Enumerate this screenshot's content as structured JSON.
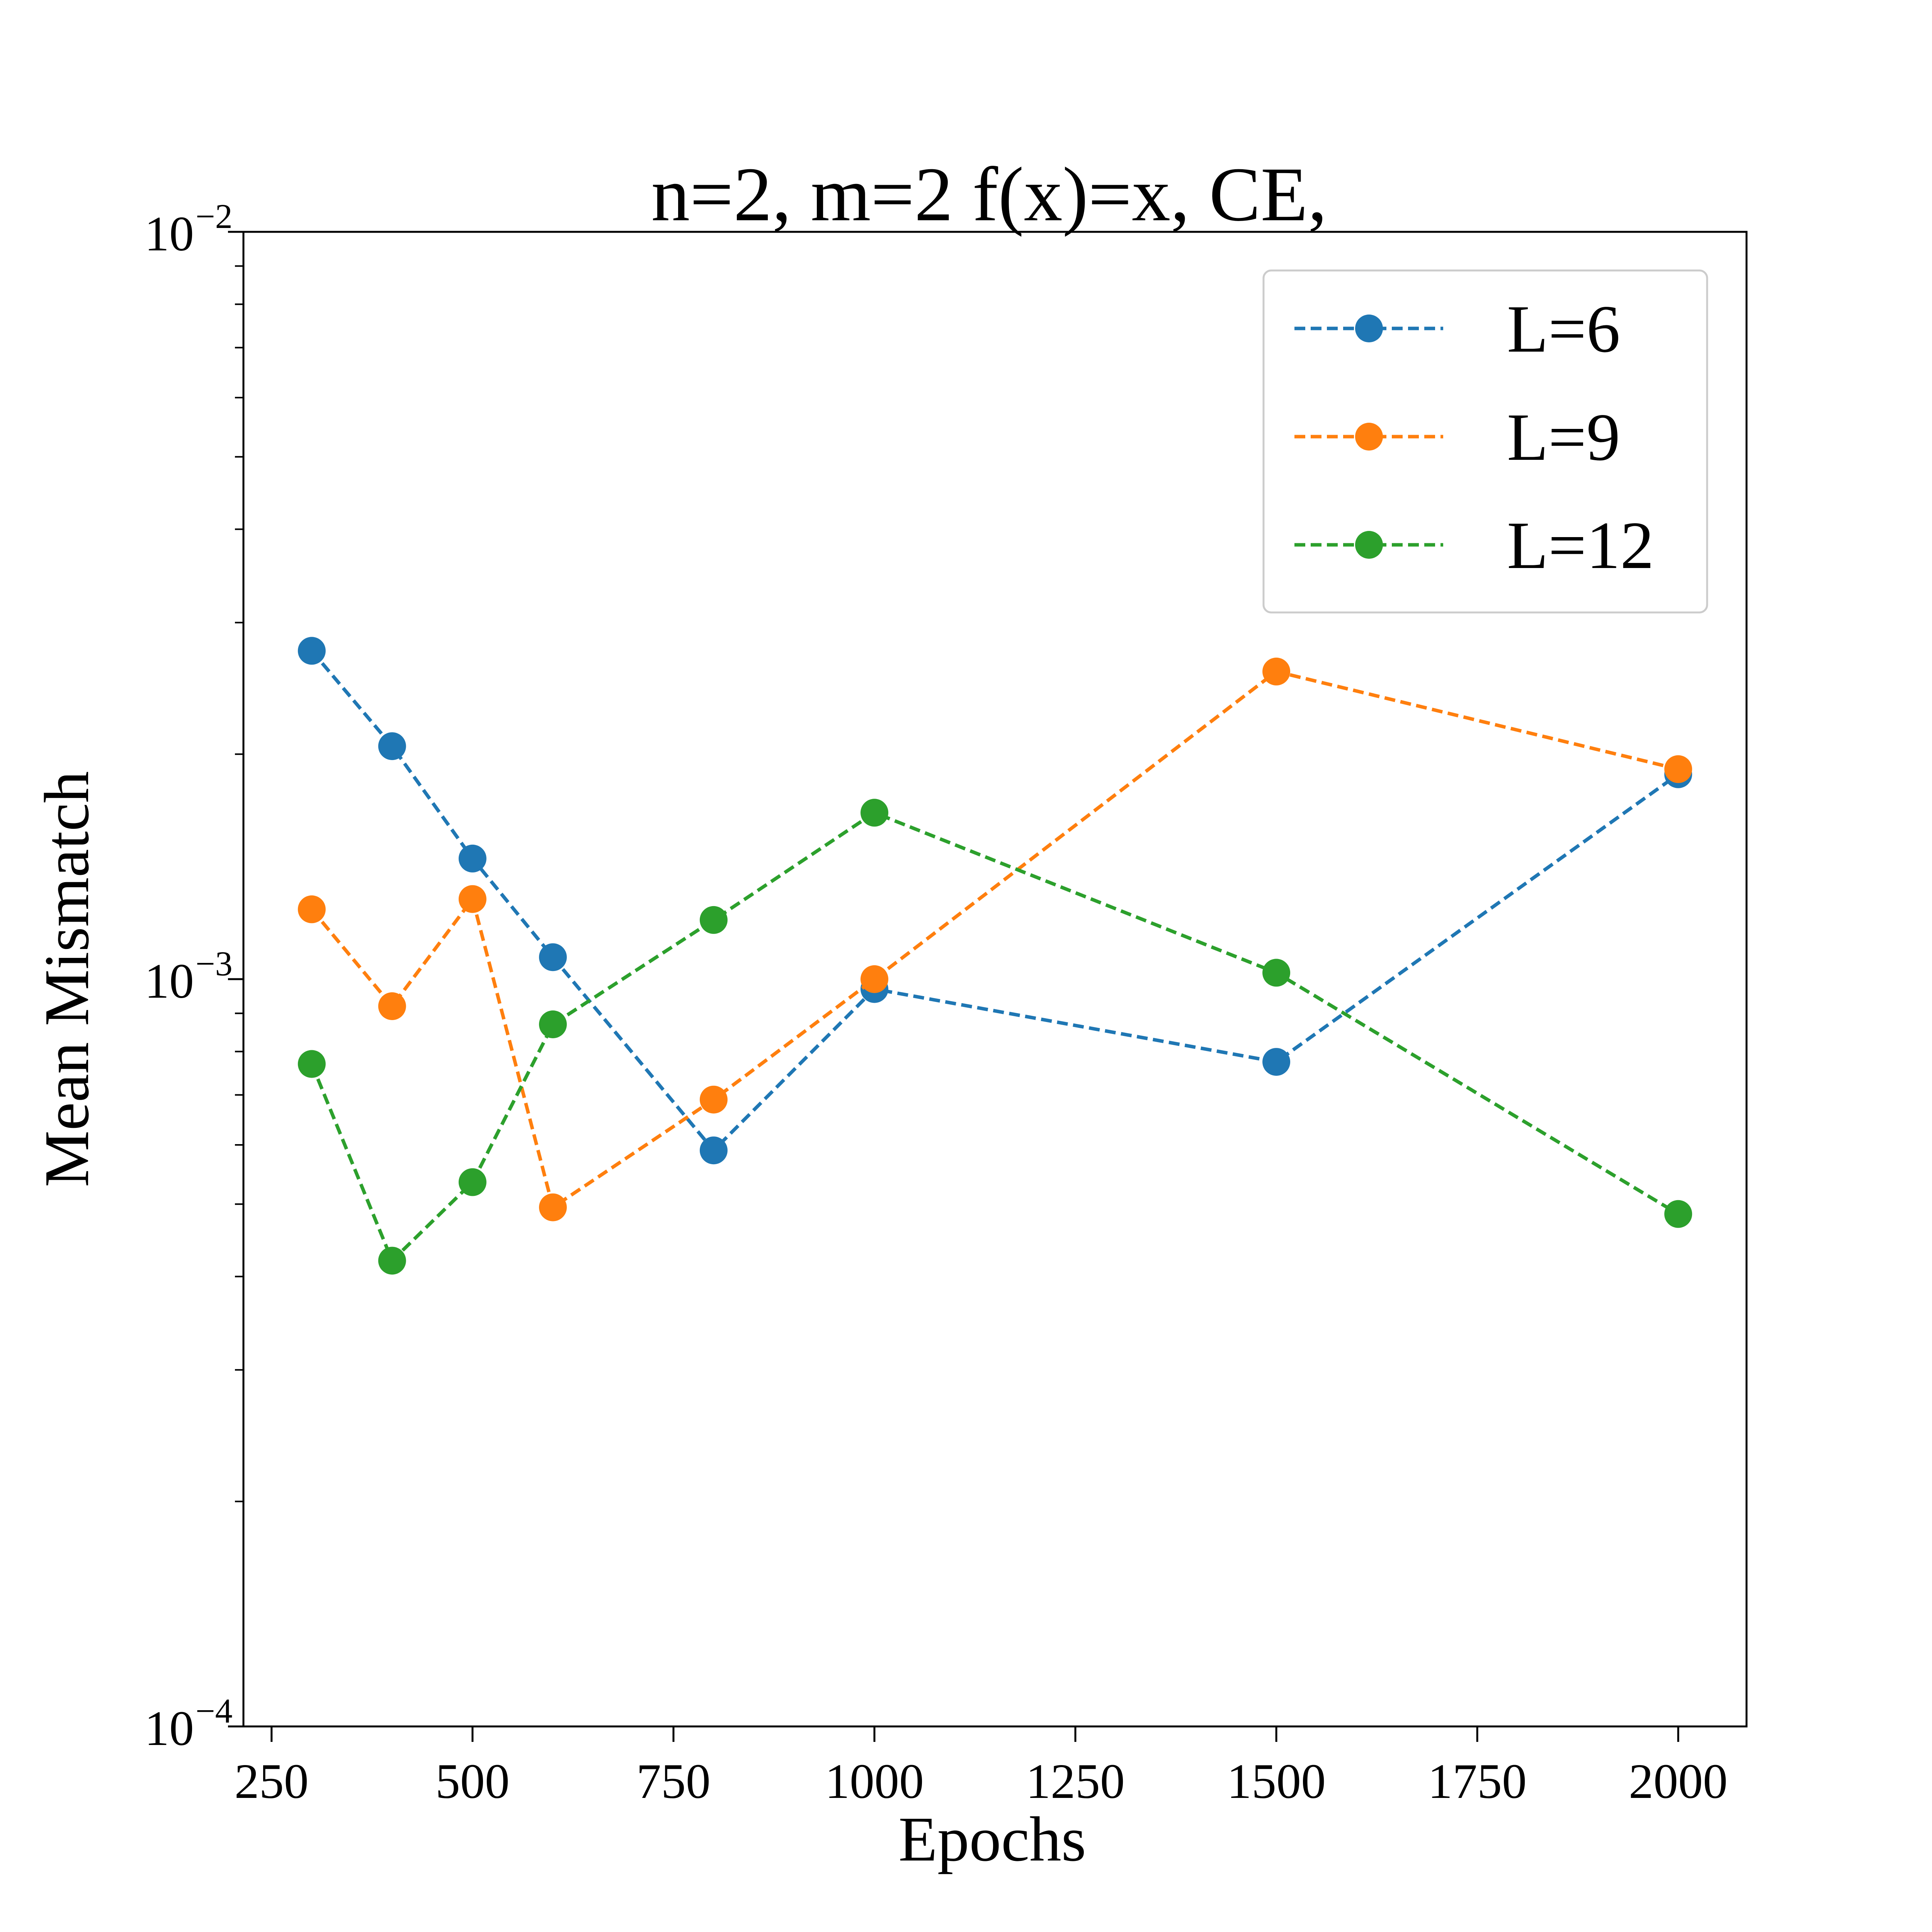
{
  "chart_data": {
    "type": "line",
    "title": "n=2, m=2 f(x)=x, CE,",
    "xlabel": "Epochs",
    "ylabel": "Mean Mismatch",
    "xlim": [
      215,
      2085
    ],
    "ylim": [
      0.0001,
      0.01
    ],
    "yscale": "log",
    "xticks": [
      250,
      500,
      750,
      1000,
      1250,
      1500,
      1750,
      2000
    ],
    "xtick_labels": [
      "250",
      "500",
      "750",
      "1000",
      "1250",
      "1500",
      "1750",
      "2000"
    ],
    "yticks": [
      {
        "value": 0.01,
        "base": "10",
        "exp": "−2"
      },
      {
        "value": 0.001,
        "base": "10",
        "exp": "−3"
      },
      {
        "value": 0.0001,
        "base": "10",
        "exp": "−4"
      }
    ],
    "x": [
      300,
      400,
      500,
      600,
      800,
      1000,
      1500,
      2000
    ],
    "series": [
      {
        "name": "L=6",
        "color": "#1f77b4",
        "values": [
          0.00275,
          0.00205,
          0.00145,
          0.00107,
          0.00059,
          0.00097,
          0.000775,
          0.00188
        ]
      },
      {
        "name": "L=9",
        "color": "#ff7f0e",
        "values": [
          0.00124,
          0.00092,
          0.00128,
          0.000495,
          0.00069,
          0.001,
          0.00258,
          0.00191
        ]
      },
      {
        "name": "L=12",
        "color": "#2ca02c",
        "values": [
          0.00077,
          0.00042,
          0.000535,
          0.00087,
          0.0012,
          0.00167,
          0.00102,
          0.000485
        ]
      }
    ],
    "legend": "top-right",
    "line_style": "dashed",
    "marker": "circle",
    "grid": false
  }
}
